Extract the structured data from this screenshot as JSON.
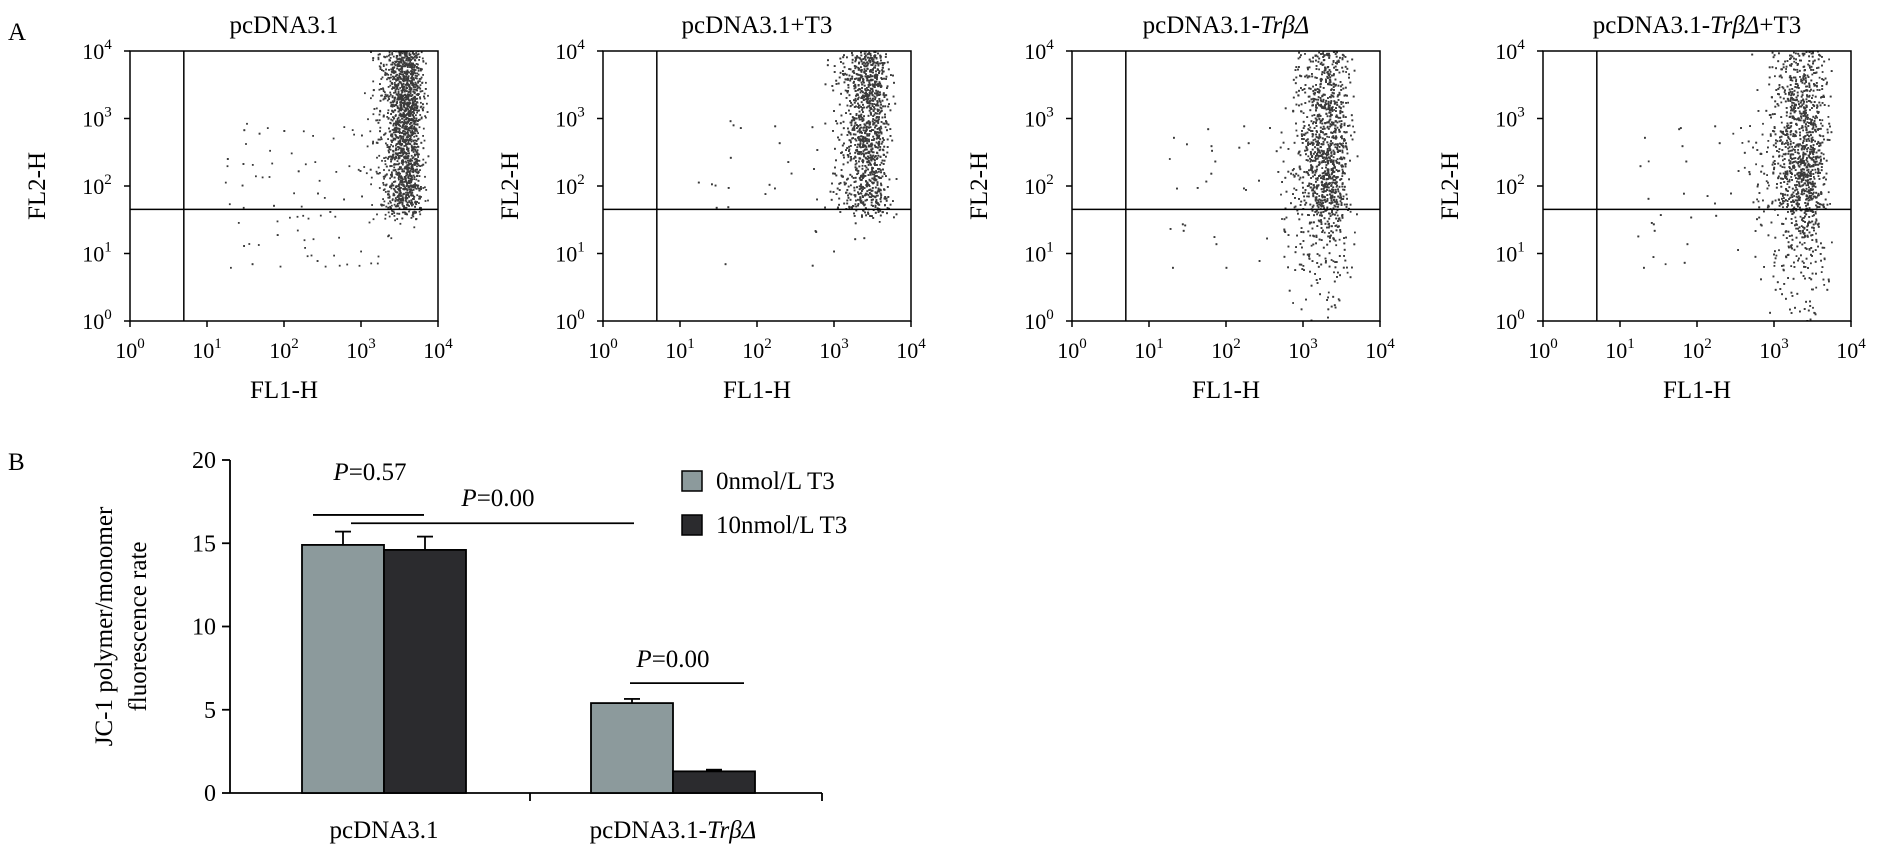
{
  "panel_labels": {
    "a": "A",
    "b": "B"
  },
  "chart_data": [
    {
      "type": "scatter",
      "title": "pcDNA3.1",
      "xlabel": "FL1-H",
      "ylabel": "FL2-H",
      "xscale": "log",
      "yscale": "log",
      "xlim": [
        1,
        10000
      ],
      "ylim": [
        1,
        10000
      ],
      "x_ticks": [
        1,
        10,
        100,
        1000,
        10000
      ],
      "y_ticks": [
        1,
        10,
        100,
        1000,
        10000
      ],
      "tick_base": "10",
      "tick_exps": [
        "0",
        "1",
        "2",
        "3",
        "4"
      ],
      "gate": {
        "x": 5,
        "y": 45
      },
      "population": {
        "center_x": 5000,
        "center_y": 3000,
        "spread_x": 0.12,
        "spread_y": 0.55,
        "upper_fraction": 0.85
      }
    },
    {
      "type": "scatter",
      "title": "pcDNA3.1+T3",
      "xlabel": "FL1-H",
      "ylabel": "FL2-H",
      "xscale": "log",
      "yscale": "log",
      "xlim": [
        1,
        10000
      ],
      "ylim": [
        1,
        10000
      ],
      "x_ticks": [
        1,
        10,
        100,
        1000,
        10000
      ],
      "y_ticks": [
        1,
        10,
        100,
        1000,
        10000
      ],
      "tick_base": "10",
      "tick_exps": [
        "0",
        "1",
        "2",
        "3",
        "4"
      ],
      "gate": {
        "x": 5,
        "y": 45
      },
      "population": {
        "center_x": 4000,
        "center_y": 1500,
        "spread_x": 0.15,
        "spread_y": 0.7,
        "upper_fraction": 0.72
      }
    },
    {
      "type": "scatter",
      "title_prefix": "pcDNA3.1-",
      "title_italic": "TrβΔ",
      "title_suffix": "",
      "xlabel": "FL1-H",
      "ylabel": "FL2-H",
      "xscale": "log",
      "yscale": "log",
      "xlim": [
        1,
        10000
      ],
      "ylim": [
        1,
        10000
      ],
      "x_ticks": [
        1,
        10,
        100,
        1000,
        10000
      ],
      "y_ticks": [
        1,
        10,
        100,
        1000,
        10000
      ],
      "tick_base": "10",
      "tick_exps": [
        "0",
        "1",
        "2",
        "3",
        "4"
      ],
      "gate": {
        "x": 5,
        "y": 45
      },
      "population": {
        "center_x": 3000,
        "center_y": 150,
        "spread_x": 0.16,
        "spread_y": 0.85,
        "upper_fraction": 0.5
      }
    },
    {
      "type": "scatter",
      "title_prefix": "pcDNA3.1-",
      "title_italic": "TrβΔ",
      "title_suffix": "+T3",
      "xlabel": "FL1-H",
      "ylabel": "FL2-H",
      "xscale": "log",
      "yscale": "log",
      "xlim": [
        1,
        10000
      ],
      "ylim": [
        1,
        10000
      ],
      "x_ticks": [
        1,
        10,
        100,
        1000,
        10000
      ],
      "y_ticks": [
        1,
        10,
        100,
        1000,
        10000
      ],
      "tick_base": "10",
      "tick_exps": [
        "0",
        "1",
        "2",
        "3",
        "4"
      ],
      "gate": {
        "x": 5,
        "y": 45
      },
      "population": {
        "center_x": 3500,
        "center_y": 120,
        "spread_x": 0.17,
        "spread_y": 0.9,
        "upper_fraction": 0.45
      }
    },
    {
      "type": "bar",
      "ylabel": [
        "JC-1 polymer/monomer",
        "fluorescence rate"
      ],
      "ylim": [
        0,
        20
      ],
      "yticks": [
        0,
        5,
        10,
        15,
        20
      ],
      "categories": [
        {
          "prefix": "pcDNA3.1",
          "italic": ""
        },
        {
          "prefix": "pcDNA3.1-",
          "italic": "TrβΔ"
        }
      ],
      "series": [
        {
          "name": "0nmol/L T3",
          "color": "#8c9a9c",
          "values": [
            14.9,
            5.4
          ],
          "errors": [
            0.8,
            0.25
          ]
        },
        {
          "name": "10nmol/L T3",
          "color": "#2b2b2e",
          "values": [
            14.6,
            1.3
          ],
          "errors": [
            0.8,
            0.1
          ]
        }
      ],
      "significance": [
        {
          "p_label": "P",
          "p_value": "=0.57",
          "from": [
            0,
            0
          ],
          "to": [
            0,
            1
          ],
          "y": 16.7
        },
        {
          "p_label": "P",
          "p_value": "=0.00",
          "from": [
            0,
            0
          ],
          "to": [
            1,
            0
          ],
          "y": 16.2
        },
        {
          "p_label": "P",
          "p_value": "=0.00",
          "from": [
            1,
            0
          ],
          "to": [
            1,
            1
          ],
          "y": 6.6
        }
      ]
    }
  ]
}
